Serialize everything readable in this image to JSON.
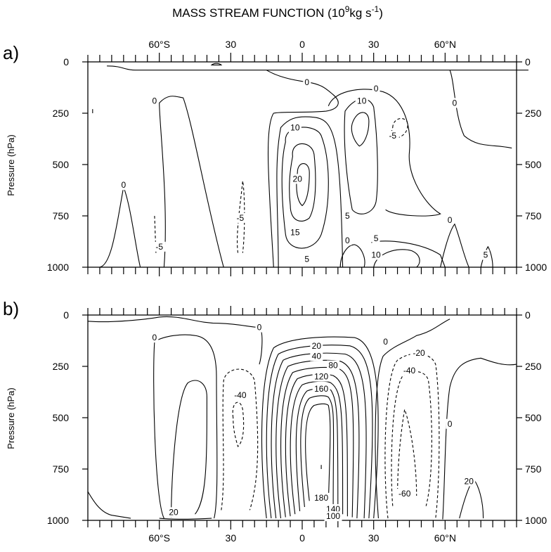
{
  "title": "MASS STREAM FUNCTION (10",
  "title_exp": "9",
  "title_units": "kg s",
  "title_units_exp": "-1",
  "title_close": ")",
  "chart_data": [
    {
      "type": "contour",
      "panel_label": "a)",
      "ylabel": "Pressure (hPa)",
      "xlim": [
        -90,
        90
      ],
      "ylim": [
        1000,
        0
      ],
      "x_ticks": [
        {
          "value": -60,
          "label": "60°S"
        },
        {
          "value": -30,
          "label": "30"
        },
        {
          "value": 0,
          "label": "0"
        },
        {
          "value": 30,
          "label": "30"
        },
        {
          "value": 60,
          "label": "60°N"
        }
      ],
      "y_ticks": [
        {
          "value": 0,
          "label": "0"
        },
        {
          "value": 250,
          "label": "250"
        },
        {
          "value": 500,
          "label": "500"
        },
        {
          "value": 750,
          "label": "750"
        },
        {
          "value": 1000,
          "label": "1000"
        }
      ],
      "x_tick_labels_position": "top",
      "dashed_contours": "negative",
      "contours": [
        {
          "level": 0,
          "lat": -62,
          "p": 190
        },
        {
          "level": 0,
          "lat": -75,
          "p": 600
        },
        {
          "level": -5,
          "lat": -60,
          "p": 900
        },
        {
          "level": -5,
          "lat": -26,
          "p": 760
        },
        {
          "level": 0,
          "lat": 2,
          "p": 100
        },
        {
          "level": 10,
          "lat": -3,
          "p": 320
        },
        {
          "level": 20,
          "lat": -2,
          "p": 570
        },
        {
          "level": 15,
          "lat": -3,
          "p": 830
        },
        {
          "level": 5,
          "lat": 2,
          "p": 960
        },
        {
          "level": 5,
          "lat": 19,
          "p": 750
        },
        {
          "level": 0,
          "lat": 19,
          "p": 870
        },
        {
          "level": 10,
          "lat": 25,
          "p": 190
        },
        {
          "level": 0,
          "lat": 31,
          "p": 130
        },
        {
          "level": -5,
          "lat": 38,
          "p": 360
        },
        {
          "level": 5,
          "lat": 31,
          "p": 860
        },
        {
          "level": 10,
          "lat": 31,
          "p": 940
        },
        {
          "level": 0,
          "lat": 64,
          "p": 200
        },
        {
          "level": 0,
          "lat": 62,
          "p": 770
        },
        {
          "level": 5,
          "lat": 77,
          "p": 940
        }
      ]
    },
    {
      "type": "contour",
      "panel_label": "b)",
      "ylabel": "Pressure (hPa)",
      "xlim": [
        -90,
        90
      ],
      "ylim": [
        1000,
        0
      ],
      "x_ticks": [
        {
          "value": -60,
          "label": "60°S"
        },
        {
          "value": -30,
          "label": "30"
        },
        {
          "value": 0,
          "label": "0"
        },
        {
          "value": 30,
          "label": "30"
        },
        {
          "value": 60,
          "label": "60°N"
        }
      ],
      "y_ticks": [
        {
          "value": 0,
          "label": "0"
        },
        {
          "value": 250,
          "label": "250"
        },
        {
          "value": 500,
          "label": "500"
        },
        {
          "value": 750,
          "label": "750"
        },
        {
          "value": 1000,
          "label": "1000"
        }
      ],
      "x_tick_labels_position": "bottom",
      "dashed_contours": "negative",
      "contours": [
        {
          "level": 0,
          "lat": -18,
          "p": 60
        },
        {
          "level": 0,
          "lat": -62,
          "p": 110
        },
        {
          "level": -40,
          "lat": -26,
          "p": 390
        },
        {
          "level": 20,
          "lat": -54,
          "p": 960
        },
        {
          "level": 20,
          "lat": 6,
          "p": 150
        },
        {
          "level": 40,
          "lat": 6,
          "p": 200
        },
        {
          "level": 80,
          "lat": 13,
          "p": 245
        },
        {
          "level": 120,
          "lat": 8,
          "p": 300
        },
        {
          "level": 160,
          "lat": 8,
          "p": 360
        },
        {
          "level": 180,
          "lat": 8,
          "p": 890
        },
        {
          "level": 140,
          "lat": 13,
          "p": 945
        },
        {
          "level": 100,
          "lat": 13,
          "p": 980
        },
        {
          "level": 0,
          "lat": 35,
          "p": 130
        },
        {
          "level": -20,
          "lat": 49,
          "p": 185
        },
        {
          "level": -40,
          "lat": 45,
          "p": 270
        },
        {
          "level": -60,
          "lat": 43,
          "p": 870
        },
        {
          "level": 0,
          "lat": 62,
          "p": 530
        },
        {
          "level": 20,
          "lat": 70,
          "p": 810
        }
      ]
    }
  ]
}
